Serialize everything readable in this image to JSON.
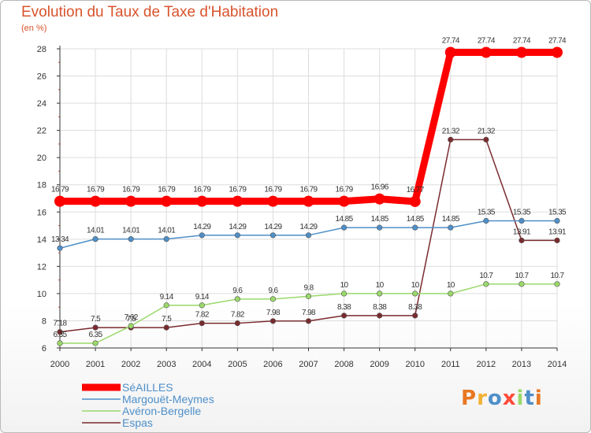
{
  "header": {
    "title": "Evolution du Taux de Taxe d'Habitation",
    "subtitle": "(en %)"
  },
  "logo": {
    "text": "Proxiti"
  },
  "colors": {
    "background": "#ffffff",
    "title": "#d9532c",
    "grid": "#dddddd",
    "axis": "#333333"
  },
  "chart_data": {
    "type": "line",
    "title": "Evolution du Taux de Taxe d'Habitation",
    "ylabel": "(en %)",
    "xlabel": "",
    "x": [
      2000,
      2001,
      2002,
      2003,
      2004,
      2005,
      2006,
      2007,
      2008,
      2009,
      2010,
      2011,
      2012,
      2013,
      2014
    ],
    "ylim": [
      6,
      28
    ],
    "yticks": [
      6,
      8,
      10,
      12,
      14,
      16,
      18,
      20,
      22,
      24,
      26,
      28
    ],
    "grid": true,
    "legend_position": "bottom-left",
    "series": [
      {
        "name": "SéAILLES",
        "color": "#ff0000",
        "values": [
          16.79,
          16.79,
          16.79,
          16.79,
          16.79,
          16.79,
          16.79,
          16.79,
          16.79,
          16.96,
          16.77,
          27.74,
          27.74,
          27.74,
          27.74
        ],
        "labels": [
          "16.79",
          "16.79",
          "16.79",
          "16.79",
          "16.79",
          "16.79",
          "16.79",
          "16.79",
          "16.79",
          "16.96",
          "16.77",
          "27.74",
          "27.74",
          "27.74",
          "27.74"
        ]
      },
      {
        "name": "Margouët-Meymes",
        "color": "#4e8fc9",
        "values": [
          13.34,
          14.01,
          14.01,
          14.01,
          14.29,
          14.29,
          14.29,
          14.29,
          14.85,
          14.85,
          14.85,
          14.85,
          15.35,
          15.35,
          15.35
        ],
        "labels": [
          "13.34",
          "14.01",
          "14.01",
          "14.01",
          "14.29",
          "14.29",
          "14.29",
          "14.29",
          "14.85",
          "14.85",
          "14.85",
          "14.85",
          "15.35",
          "15.35",
          "15.35"
        ]
      },
      {
        "name": "Avéron-Bergelle",
        "color": "#9ad96a",
        "values": [
          6.35,
          6.35,
          7.62,
          9.14,
          9.14,
          9.6,
          9.6,
          9.8,
          10,
          10,
          10,
          10,
          10.7,
          10.7,
          10.7
        ],
        "labels": [
          "6.35",
          "6.35",
          "7.62",
          "9.14",
          "9.14",
          "9.6",
          "9.6",
          "9.8",
          "10",
          "10",
          "10",
          "10",
          "10.7",
          "10.7",
          "10.7"
        ]
      },
      {
        "name": "Espas",
        "color": "#7a2b2e",
        "values": [
          7.18,
          7.5,
          7.5,
          7.5,
          7.82,
          7.82,
          7.98,
          7.98,
          8.38,
          8.38,
          8.38,
          21.32,
          21.32,
          13.91,
          13.91
        ],
        "labels": [
          "7.18",
          "7.5",
          "7.5",
          "7.5",
          "7.82",
          "7.82",
          "7.98",
          "7.98",
          "8.38",
          "8.38",
          "8.38",
          "21.32",
          "21.32",
          "13.91",
          "13.91"
        ]
      }
    ]
  }
}
